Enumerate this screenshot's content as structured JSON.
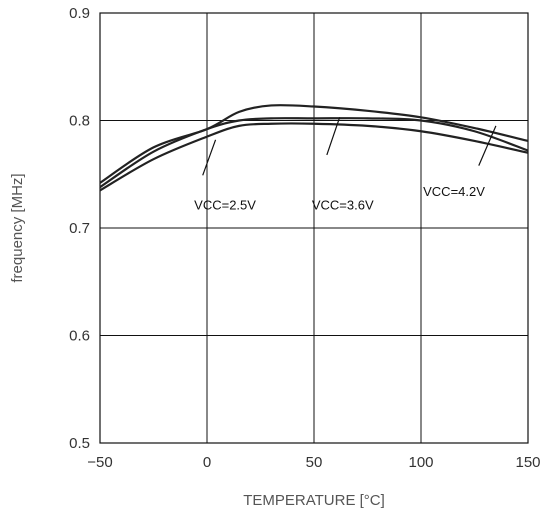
{
  "chart_data": {
    "type": "line",
    "title": "",
    "xlabel": "TEMPERATURE [°C]",
    "ylabel": "frequency [MHz]",
    "xlim": [
      -50,
      150
    ],
    "ylim": [
      0.5,
      0.9
    ],
    "xticks": [
      "−50",
      "0",
      "50",
      "100",
      "150"
    ],
    "yticks": [
      "0.5",
      "0.6",
      "0.7",
      "0.8",
      "0.9"
    ],
    "grid": true,
    "series": [
      {
        "name": "VCC=2.5V",
        "x": [
          -50,
          -25,
          0,
          15,
          30,
          50,
          75,
          100,
          125,
          150
        ],
        "y": [
          0.742,
          0.775,
          0.792,
          0.808,
          0.814,
          0.813,
          0.809,
          0.803,
          0.793,
          0.781
        ]
      },
      {
        "name": "VCC=3.6V",
        "x": [
          -50,
          -25,
          0,
          15,
          30,
          50,
          75,
          100,
          125,
          150
        ],
        "y": [
          0.738,
          0.771,
          0.792,
          0.8,
          0.802,
          0.802,
          0.802,
          0.8,
          0.79,
          0.772
        ]
      },
      {
        "name": "VCC=4.2V",
        "x": [
          -50,
          -25,
          0,
          15,
          30,
          50,
          75,
          100,
          125,
          150
        ],
        "y": [
          0.735,
          0.764,
          0.785,
          0.795,
          0.797,
          0.797,
          0.795,
          0.79,
          0.781,
          0.77
        ]
      }
    ],
    "annotations": [
      {
        "text": "VCC=2.5V",
        "x": -6,
        "y": 0.717,
        "line": [
          [
            -2,
            0.749
          ],
          [
            4,
            0.782
          ]
        ]
      },
      {
        "text": "VCC=3.6V",
        "x": 49,
        "y": 0.717,
        "line": [
          [
            56,
            0.768
          ],
          [
            62,
            0.803
          ]
        ]
      },
      {
        "text": "VCC=4.2V",
        "x": 101,
        "y": 0.73,
        "line": [
          [
            127,
            0.758
          ],
          [
            135,
            0.795
          ]
        ]
      }
    ]
  }
}
